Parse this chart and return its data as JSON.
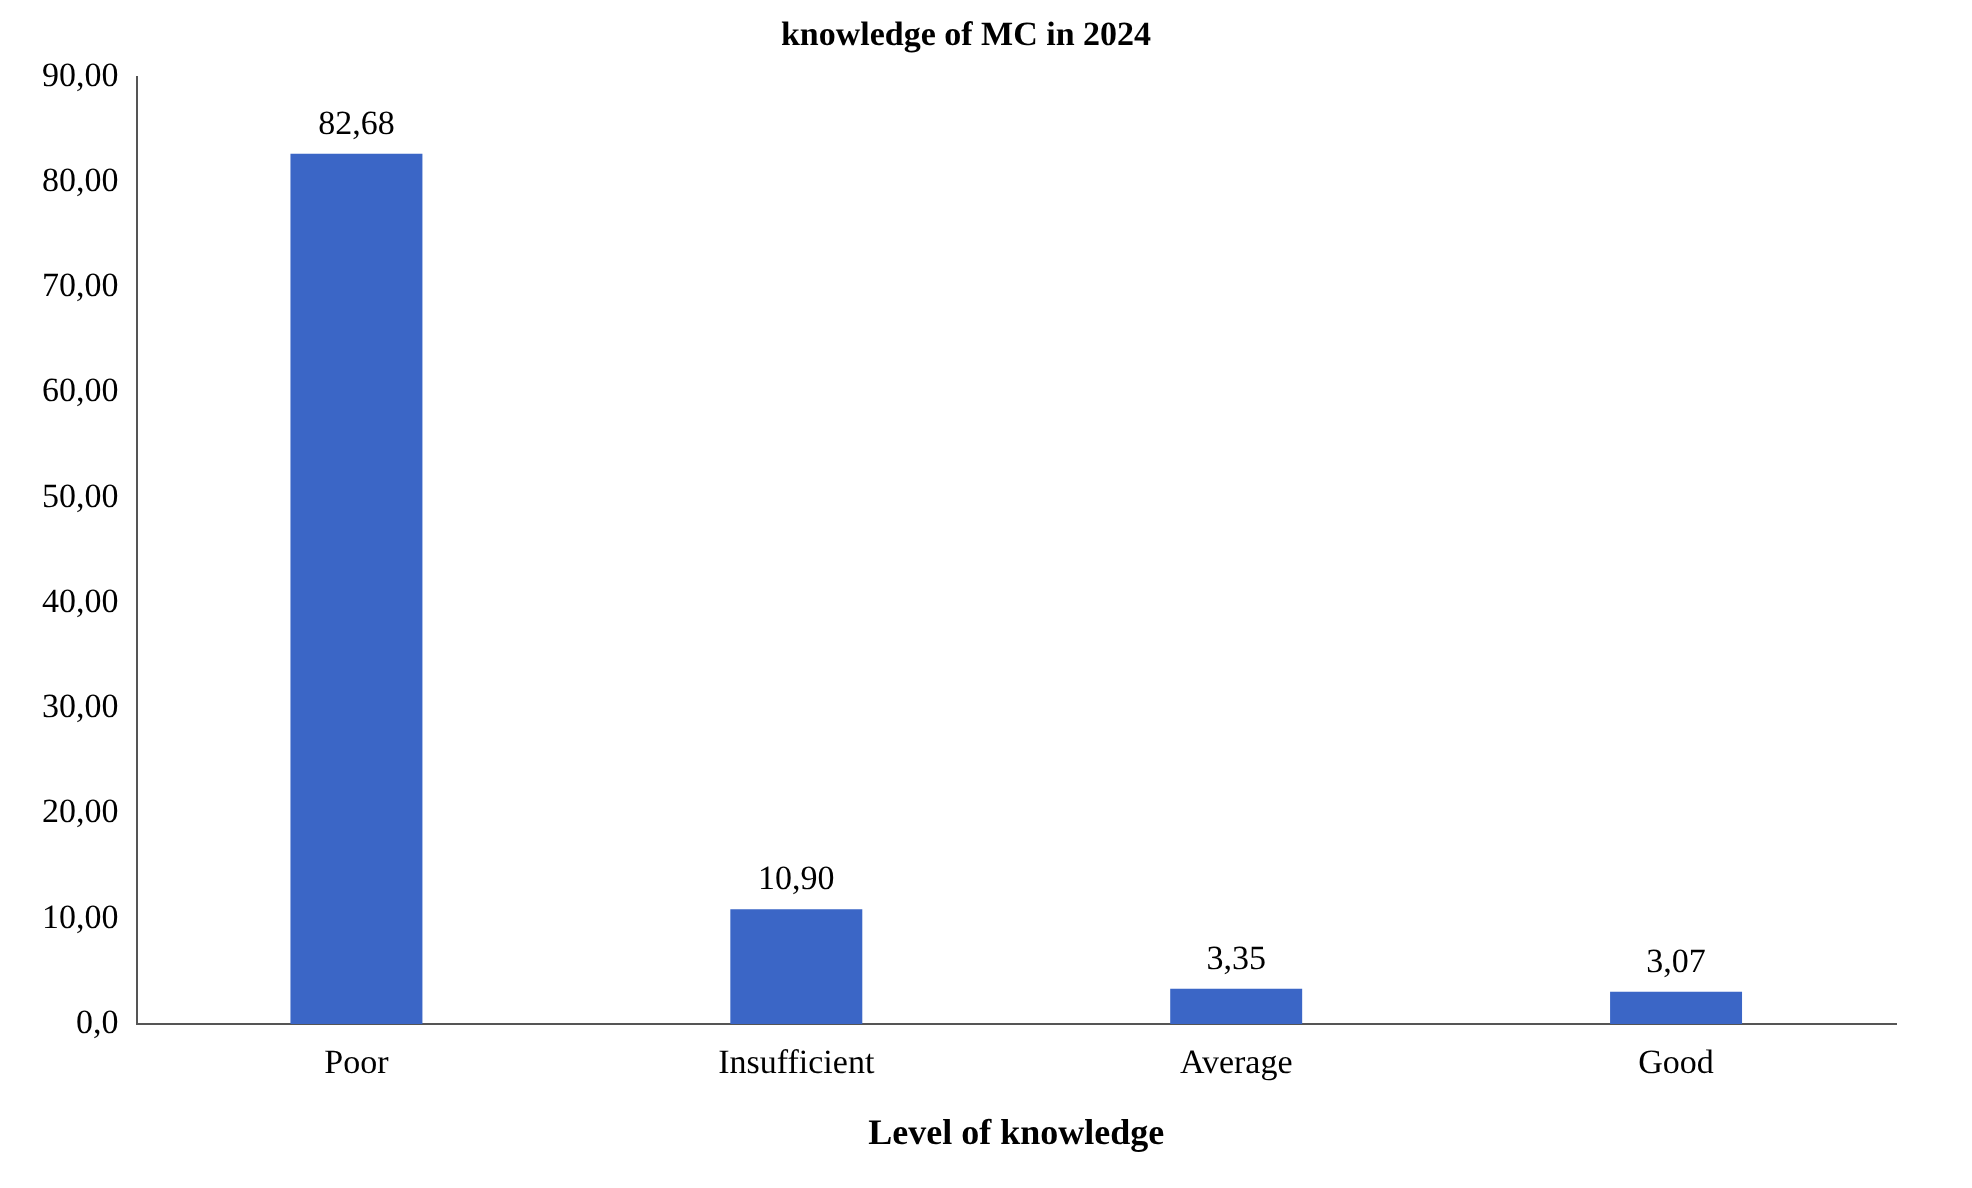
{
  "chart_data": {
    "type": "bar",
    "title": "knowledge of MC in 2024",
    "xlabel": "Level of knowledge",
    "categories": [
      "Poor",
      "Insufficient",
      "Average",
      "Good"
    ],
    "values": [
      82.68,
      10.9,
      3.35,
      3.07
    ],
    "value_labels": [
      "82,68",
      "10,90",
      "3,35",
      "3,07"
    ],
    "color": "#3b66c6",
    "ylim": [
      0,
      90
    ],
    "yticks": [
      {
        "value": 0,
        "label": "0,0"
      },
      {
        "value": 10,
        "label": "10,00"
      },
      {
        "value": 20,
        "label": "20,00"
      },
      {
        "value": 30,
        "label": "30,00"
      },
      {
        "value": 40,
        "label": "40,00"
      },
      {
        "value": 50,
        "label": "50,00"
      },
      {
        "value": 60,
        "label": "60,00"
      },
      {
        "value": 70,
        "label": "70,00"
      },
      {
        "value": 80,
        "label": "80,00"
      },
      {
        "value": 90,
        "label": "90,00"
      }
    ],
    "grid": false,
    "legend": false
  }
}
